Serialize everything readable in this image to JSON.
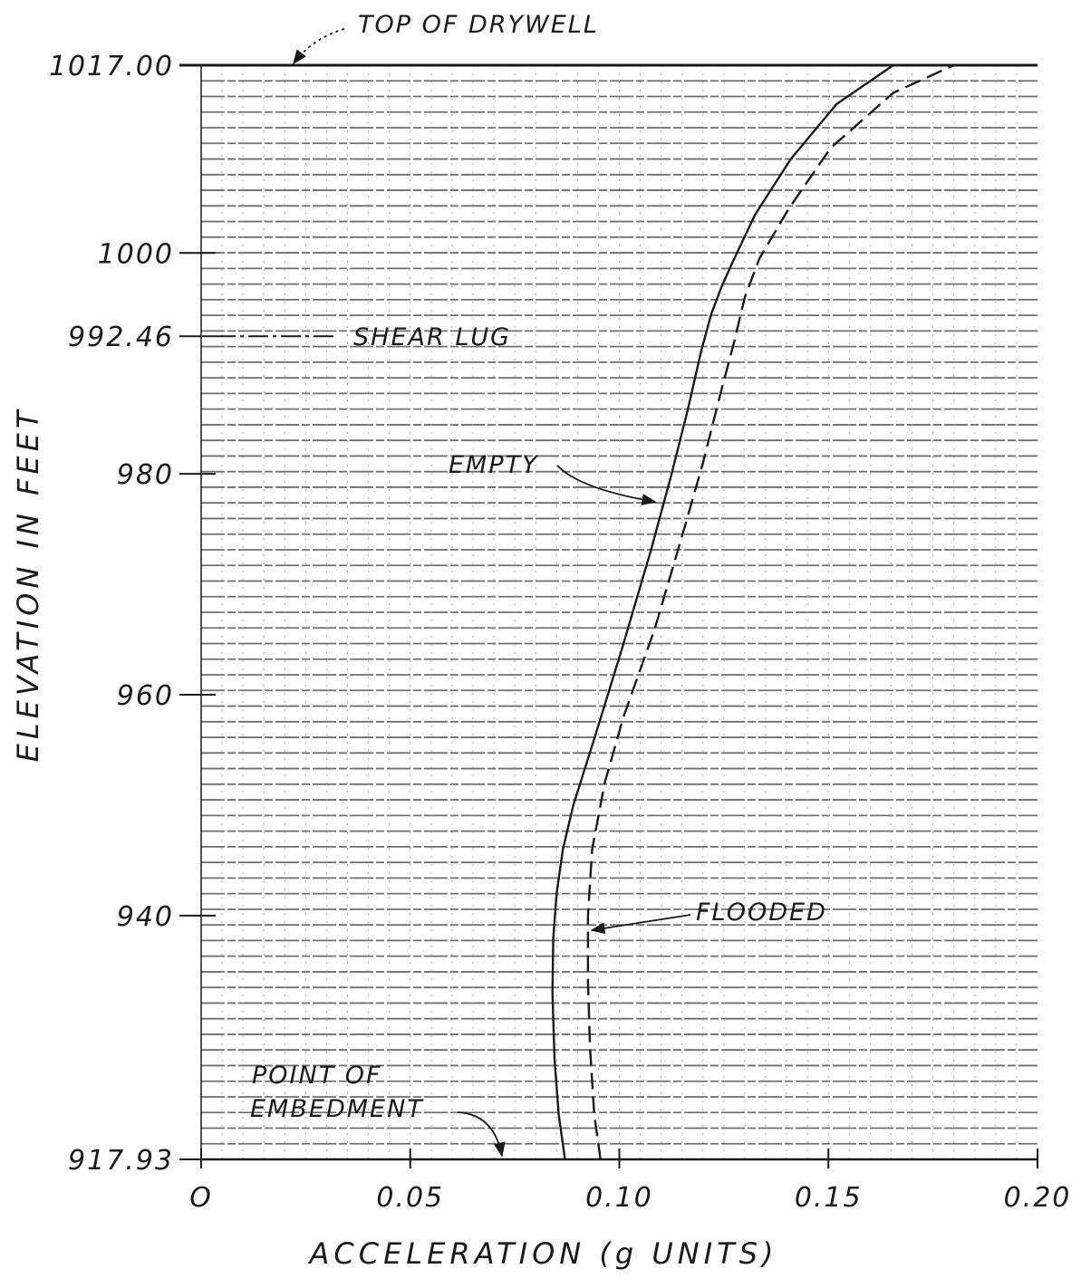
{
  "chart_data": {
    "type": "line",
    "xlabel": "ACCELERATION (g UNITS)",
    "ylabel": "ELEVATION IN FEET",
    "xlim": [
      0,
      0.2
    ],
    "ylim": [
      917.93,
      1017.0
    ],
    "x_ticks": [
      0,
      0.05,
      0.1,
      0.15,
      0.2
    ],
    "x_tick_labels": [
      "O",
      "0.05",
      "0.10",
      "0.15",
      "0.20"
    ],
    "y_ticks": [
      917.93,
      940,
      960,
      980,
      992.46,
      1000,
      1017.0
    ],
    "y_tick_labels": [
      "917.93",
      "940",
      "960",
      "980",
      "992.46",
      "1000",
      "1017.00"
    ],
    "grid": true,
    "series": [
      {
        "name": "EMPTY",
        "style": "solid",
        "points": [
          [
            0.087,
            917.93
          ],
          [
            0.0855,
            922
          ],
          [
            0.0845,
            927
          ],
          [
            0.084,
            933
          ],
          [
            0.0842,
            938
          ],
          [
            0.085,
            942
          ],
          [
            0.0865,
            946
          ],
          [
            0.089,
            950
          ],
          [
            0.094,
            956
          ],
          [
            0.1005,
            964
          ],
          [
            0.1075,
            973
          ],
          [
            0.1125,
            980
          ],
          [
            0.1165,
            986
          ],
          [
            0.1195,
            991
          ],
          [
            0.122,
            994.5
          ],
          [
            0.1245,
            997
          ],
          [
            0.1275,
            999.5
          ],
          [
            0.1325,
            1003.5
          ],
          [
            0.141,
            1008.5
          ],
          [
            0.152,
            1013.5
          ],
          [
            0.1655,
            1017.0
          ]
        ]
      },
      {
        "name": "FLOODED",
        "style": "dashed",
        "points": [
          [
            0.0955,
            917.93
          ],
          [
            0.094,
            922
          ],
          [
            0.093,
            928
          ],
          [
            0.0925,
            934
          ],
          [
            0.0925,
            940
          ],
          [
            0.0935,
            946
          ],
          [
            0.0965,
            952
          ],
          [
            0.101,
            958
          ],
          [
            0.1085,
            966
          ],
          [
            0.1155,
            975
          ],
          [
            0.12,
            981
          ],
          [
            0.124,
            987
          ],
          [
            0.1275,
            992
          ],
          [
            0.13,
            996
          ],
          [
            0.1335,
            999.5
          ],
          [
            0.1405,
            1004
          ],
          [
            0.1505,
            1009.5
          ],
          [
            0.1655,
            1014.5
          ],
          [
            0.18,
            1017.0
          ]
        ]
      }
    ],
    "annotations": [
      {
        "text": "TOP OF DRYWELL",
        "points_to": [
          0.022,
          1017.0
        ]
      },
      {
        "text": "SHEAR LUG",
        "at_elevation": 992.46
      },
      {
        "text": "EMPTY",
        "points_to": [
          0.1095,
          977.5
        ]
      },
      {
        "text": "FLOODED",
        "points_to": [
          0.0925,
          939
        ]
      },
      {
        "text": "POINT OF EMBEDMENT",
        "points_to": [
          0.072,
          917.93
        ]
      }
    ],
    "colors": {
      "ink": "#1a1a1a",
      "grid": "#6f6f6f",
      "background": "#ffffff"
    }
  }
}
